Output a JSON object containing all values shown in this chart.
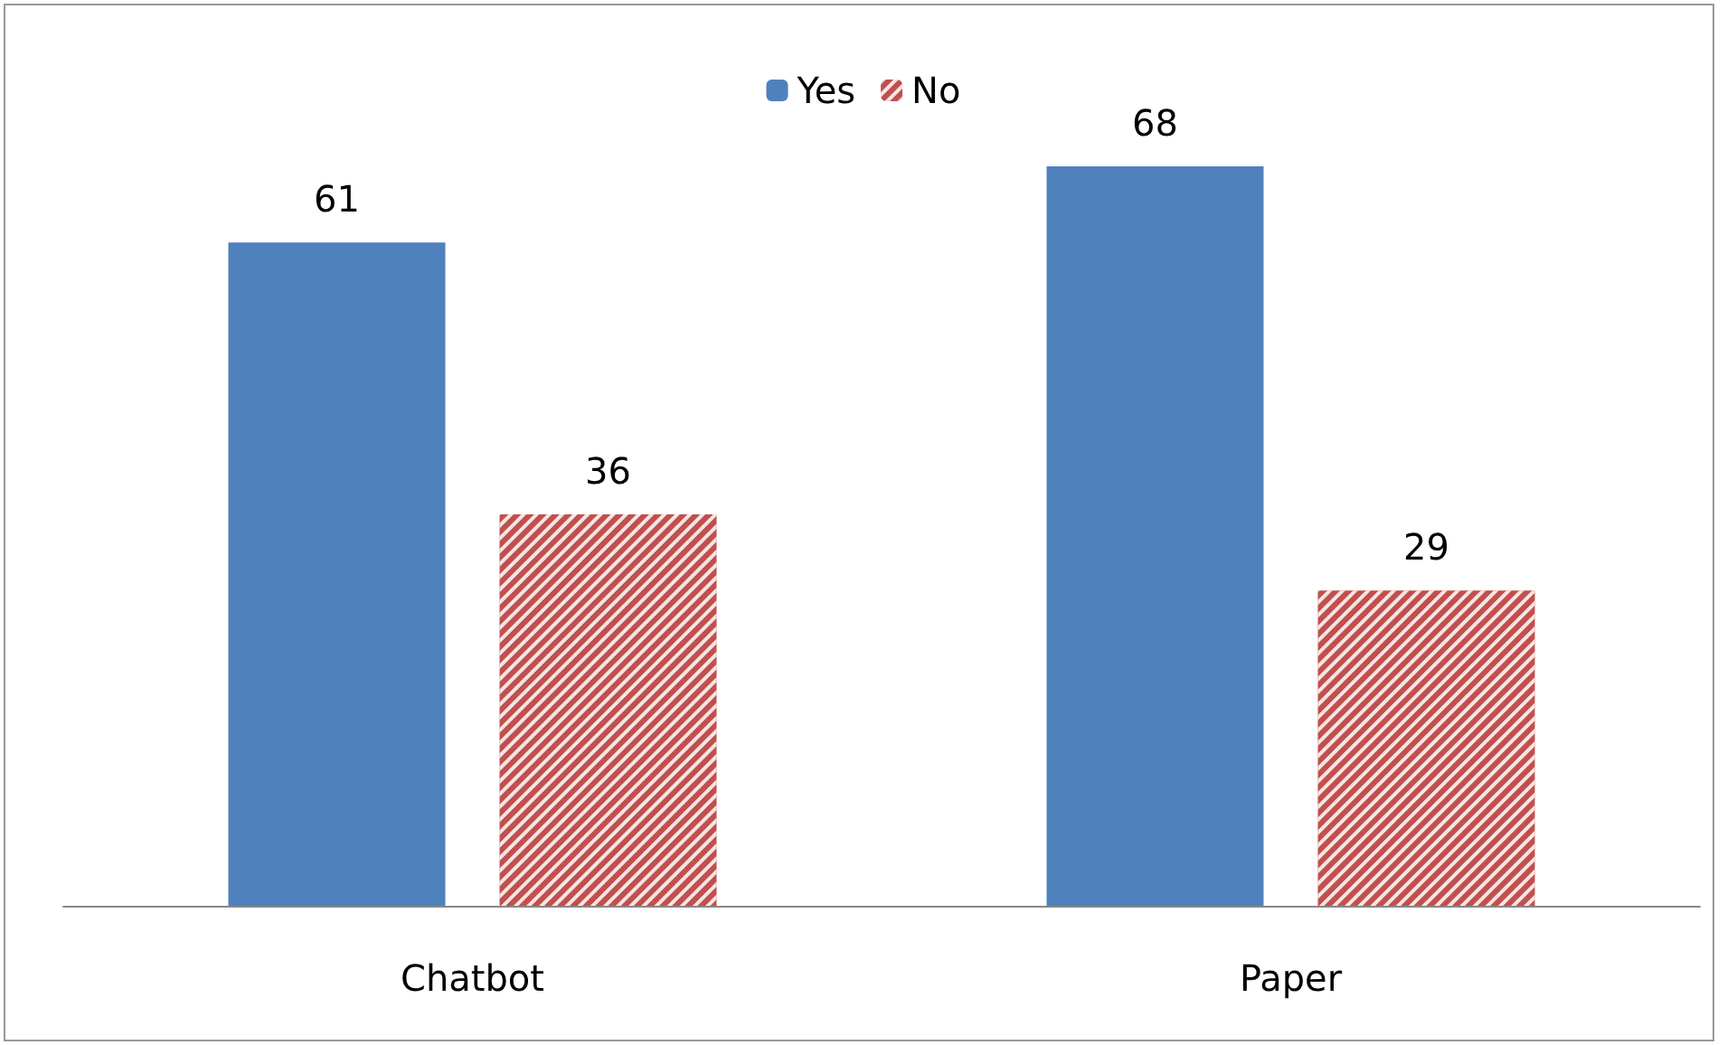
{
  "chart_data": {
    "type": "bar",
    "categories": [
      "Chatbot",
      "Paper"
    ],
    "series": [
      {
        "name": "Yes",
        "color": "#4f81bd",
        "values": [
          61,
          68
        ]
      },
      {
        "name": "No",
        "color": "#c0504d",
        "values": [
          36,
          29
        ]
      }
    ],
    "data_labels": true,
    "legend": "top"
  }
}
